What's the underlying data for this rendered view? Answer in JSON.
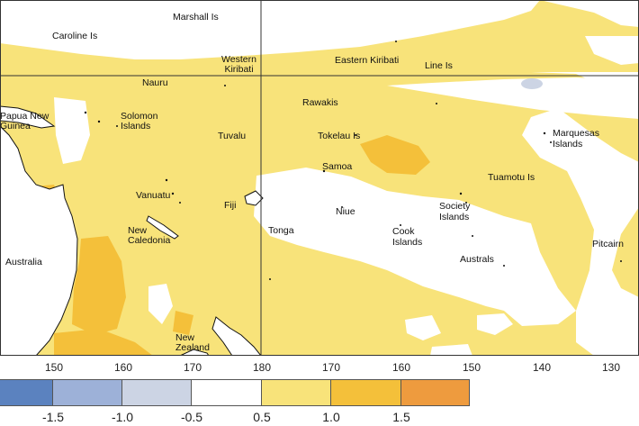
{
  "map": {
    "labels": {
      "marshall": "Marshall Is",
      "caroline": "Caroline Is",
      "western_kiribati": "Western Kiribati",
      "eastern_kiribati": "Eastern Kiribati",
      "line": "Line Is",
      "nauru": "Nauru",
      "rawaki": "Rawakis",
      "papua": "Papua New Guinea",
      "solomon": "Solomon Islands",
      "tuvalu": "Tuvalu",
      "tokelau": "Tokelau Is",
      "marquesas": "Marquesas Islands",
      "samoa": "Samoa",
      "tuamotu": "Tuamotu Is",
      "vanuatu": "Vanuatu",
      "fiji": "Fiji",
      "niue": "Niue",
      "society": "Society Islands",
      "tonga": "Tonga",
      "cook": "Cook Islands",
      "new_caledonia": "New Caledonia",
      "pitcairn": "Pitcairn",
      "australia": "Australia",
      "australs": "Australs",
      "new_zealand": "New Zealand"
    },
    "longitude_ticks": [
      "150",
      "160",
      "170",
      "180",
      "170",
      "160",
      "150",
      "140",
      "130"
    ]
  },
  "legend": {
    "colors": [
      "#5b82bf",
      "#9db1d8",
      "#ccd4e4",
      "#ffffff",
      "#f8e37a",
      "#f4c03a",
      "#ee9b3e"
    ],
    "values": [
      "-1.5",
      "-1.0",
      "-0.5",
      "0.5",
      "1.0",
      "1.5"
    ]
  }
}
